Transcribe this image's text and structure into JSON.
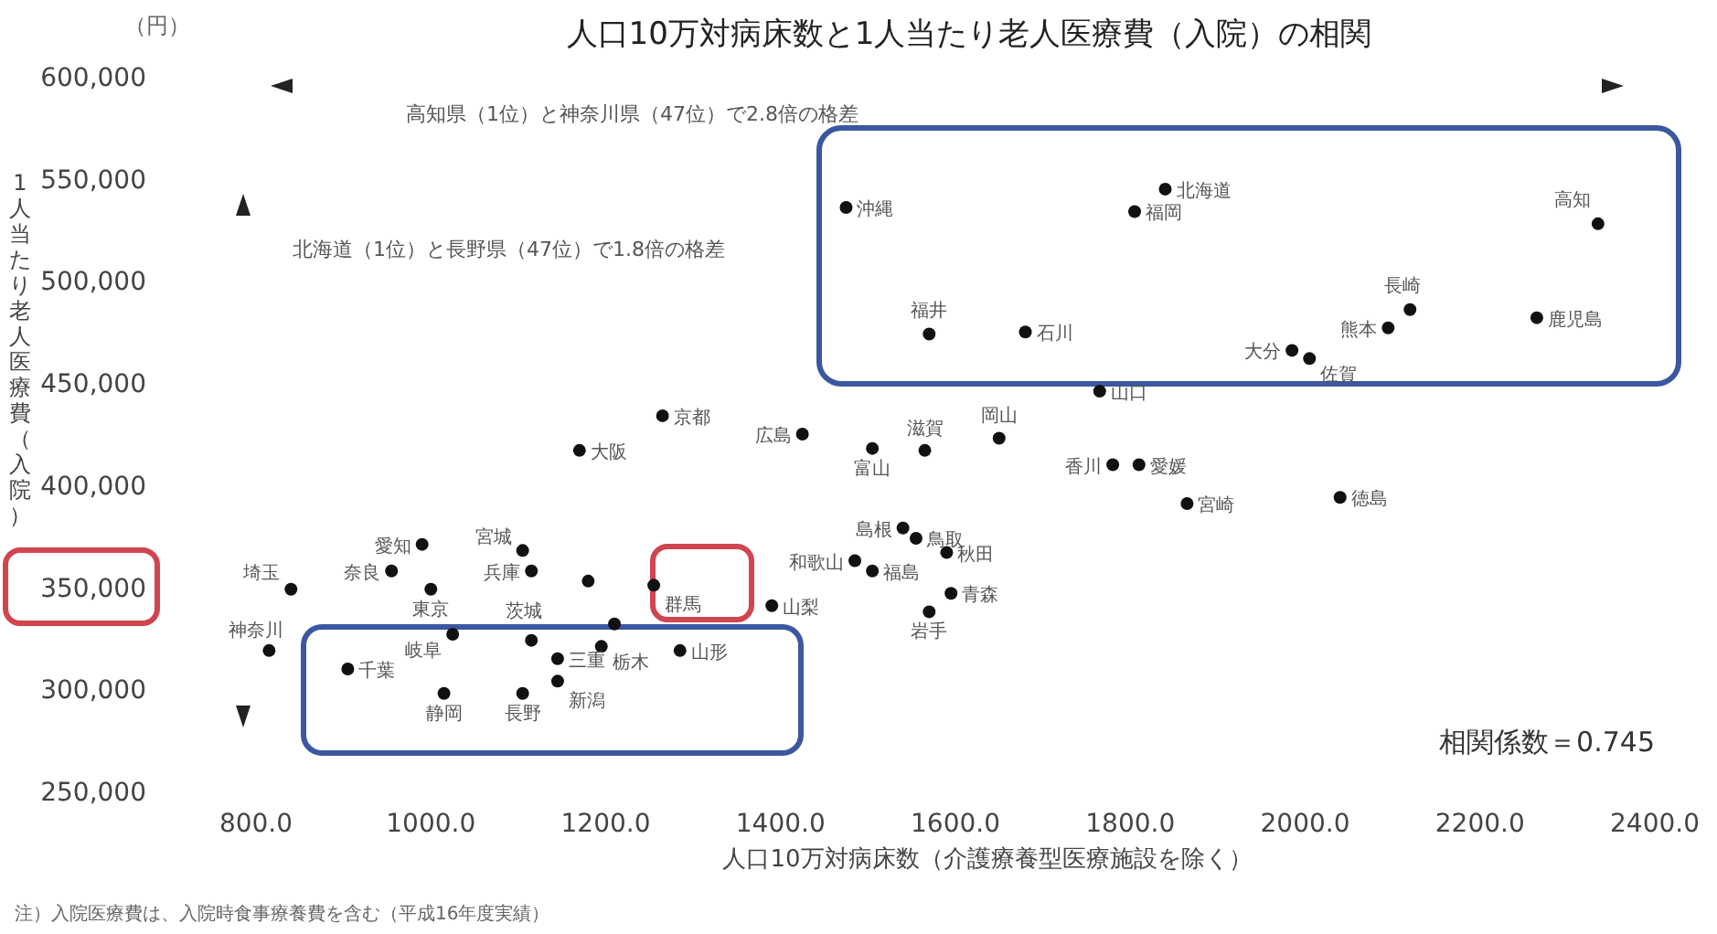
{
  "chart_data": {
    "type": "scatter",
    "title": "人口10万対病床数と1人当たり老人医療費（入院）の相関",
    "xlabel": "人口10万対病床数（介護療養型医療施設を除く）",
    "ylabel": "1人当たり老人医療費（入院）",
    "xlim": [
      800,
      2400
    ],
    "xticks": [
      {
        "value": 800,
        "label": "800.0"
      },
      {
        "value": 1000,
        "label": "1000.0"
      },
      {
        "value": 1200,
        "label": "1200.0"
      },
      {
        "value": 1400,
        "label": "1400.0"
      },
      {
        "value": 1600,
        "label": "1600.0"
      },
      {
        "value": 1800,
        "label": "1800.0"
      },
      {
        "value": 2000,
        "label": "2000.0"
      },
      {
        "value": 2200,
        "label": "2200.0"
      },
      {
        "value": 2400,
        "label": "2400.0"
      }
    ],
    "ylim": [
      250000,
      600000
    ],
    "yticks": [
      {
        "value": 250000,
        "label": "250,000"
      },
      {
        "value": 300000,
        "label": "300,000"
      },
      {
        "value": 350000,
        "label": "350,000"
      },
      {
        "value": 400000,
        "label": "400,000"
      },
      {
        "value": 450000,
        "label": "450,000"
      },
      {
        "value": 500000,
        "label": "500,000"
      },
      {
        "value": 550000,
        "label": "550,000"
      },
      {
        "value": 600000,
        "label": "600,000"
      }
    ],
    "marker": "circle",
    "series": [
      {
        "color": "#111111",
        "x": [
          1475,
          1840,
          1805,
          2335,
          1570,
          1680,
          2120,
          2095,
          2265,
          1985,
          2005,
          1765,
          1265,
          1170,
          1425,
          1505,
          1565,
          1650,
          1780,
          1810,
          1865,
          2040,
          1540,
          1555,
          1590,
          1485,
          1505,
          1595,
          1570,
          1390,
          1255,
          1285,
          1210,
          1180,
          1115,
          1105,
          990,
          955,
          1000,
          840,
          815,
          905,
          1025,
          1115,
          1145,
          1195,
          1145,
          1015,
          1105
        ],
        "values": [
          536000,
          545000,
          534000,
          528000,
          474000,
          475000,
          486000,
          477000,
          482000,
          466000,
          462000,
          446000,
          434000,
          417000,
          425000,
          418000,
          417000,
          423000,
          410000,
          410000,
          391000,
          394000,
          379000,
          374000,
          367000,
          363000,
          358000,
          347000,
          338000,
          341000,
          351000,
          319000,
          332000,
          353000,
          358000,
          368000,
          371000,
          358000,
          349000,
          349000,
          319000,
          310000,
          327000,
          324000,
          315000,
          321000,
          304000,
          298000,
          298000
        ]
      }
    ],
    "annotations": [
      {
        "text": "沖縄",
        "x": 1475,
        "y": 536000
      },
      {
        "text": "北海道",
        "x": 1840,
        "y": 545000
      },
      {
        "text": "福岡",
        "x": 1805,
        "y": 534000
      },
      {
        "text": "高知",
        "x": 2335,
        "y": 528000
      },
      {
        "text": "福井",
        "x": 1570,
        "y": 474000
      },
      {
        "text": "石川",
        "x": 1680,
        "y": 475000
      },
      {
        "text": "長崎",
        "x": 2120,
        "y": 486000
      },
      {
        "text": "熊本",
        "x": 2095,
        "y": 477000
      },
      {
        "text": "鹿児島",
        "x": 2265,
        "y": 482000
      },
      {
        "text": "大分",
        "x": 1985,
        "y": 466000
      },
      {
        "text": "佐賀",
        "x": 2005,
        "y": 462000
      },
      {
        "text": "山口",
        "x": 1765,
        "y": 446000
      },
      {
        "text": "京都",
        "x": 1265,
        "y": 434000
      },
      {
        "text": "大阪",
        "x": 1170,
        "y": 417000
      },
      {
        "text": "広島",
        "x": 1425,
        "y": 425000
      },
      {
        "text": "富山",
        "x": 1505,
        "y": 418000
      },
      {
        "text": "滋賀",
        "x": 1565,
        "y": 417000
      },
      {
        "text": "岡山",
        "x": 1650,
        "y": 423000
      },
      {
        "text": "香川",
        "x": 1780,
        "y": 410000
      },
      {
        "text": "愛媛",
        "x": 1810,
        "y": 410000
      },
      {
        "text": "宮崎",
        "x": 1865,
        "y": 391000
      },
      {
        "text": "徳島",
        "x": 2040,
        "y": 394000
      },
      {
        "text": "島根",
        "x": 1540,
        "y": 379000
      },
      {
        "text": "鳥取",
        "x": 1555,
        "y": 374000
      },
      {
        "text": "秋田",
        "x": 1590,
        "y": 367000
      },
      {
        "text": "和歌山",
        "x": 1485,
        "y": 363000
      },
      {
        "text": "福島",
        "x": 1505,
        "y": 358000
      },
      {
        "text": "青森",
        "x": 1595,
        "y": 347000
      },
      {
        "text": "岩手",
        "x": 1570,
        "y": 338000
      },
      {
        "text": "山梨",
        "x": 1390,
        "y": 341000
      },
      {
        "text": "群馬",
        "x": 1255,
        "y": 351000
      },
      {
        "text": "山形",
        "x": 1285,
        "y": 319000
      },
      {
        "text": "兵庫",
        "x": 1115,
        "y": 358000
      },
      {
        "text": "宮城",
        "x": 1105,
        "y": 368000
      },
      {
        "text": "愛知",
        "x": 990,
        "y": 371000
      },
      {
        "text": "奈良",
        "x": 955,
        "y": 358000
      },
      {
        "text": "東京",
        "x": 1000,
        "y": 349000
      },
      {
        "text": "埼玉",
        "x": 840,
        "y": 349000
      },
      {
        "text": "神奈川",
        "x": 815,
        "y": 319000
      },
      {
        "text": "千葉",
        "x": 905,
        "y": 310000
      },
      {
        "text": "岐阜",
        "x": 1025,
        "y": 327000
      },
      {
        "text": "茨城",
        "x": 1115,
        "y": 324000
      },
      {
        "text": "三重",
        "x": 1145,
        "y": 315000
      },
      {
        "text": "栃木",
        "x": 1195,
        "y": 321000
      },
      {
        "text": "新潟",
        "x": 1145,
        "y": 304000
      },
      {
        "text": "静岡",
        "x": 1015,
        "y": 298000
      },
      {
        "text": "長野",
        "x": 1105,
        "y": 298000
      },
      "（円）",
      "高知県（1位）と神奈川県（47位）で2.8倍の格差",
      "北海道（1位）と長野県（47位）で1.8倍の格差",
      "相関係数＝0.745",
      "注）入院医療費は、入院時食事療養費を含む（平成16年度実績）"
    ]
  }
}
